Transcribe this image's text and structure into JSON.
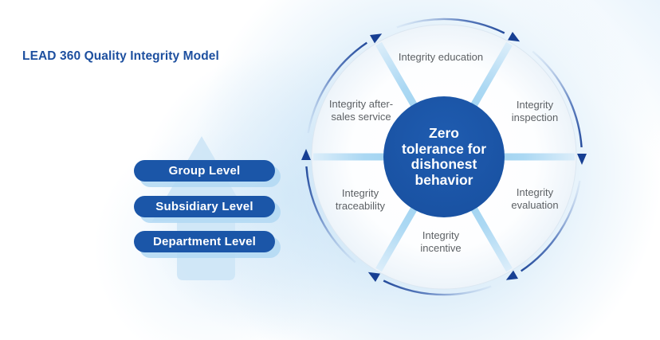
{
  "title": {
    "text": "LEAD 360 Quality Integrity Model"
  },
  "levels": {
    "items": [
      {
        "label": "Group Level"
      },
      {
        "label": "Subsidiary Level"
      },
      {
        "label": "Department Level"
      }
    ]
  },
  "wheel": {
    "center": {
      "lines": [
        "Zero",
        "tolerance for",
        "dishonest",
        "behavior"
      ]
    },
    "segments": [
      {
        "id": "education",
        "label": "Integrity education"
      },
      {
        "id": "inspection",
        "label": "Integrity inspection"
      },
      {
        "id": "evaluation",
        "label": "Integrity evaluation"
      },
      {
        "id": "incentive",
        "label": "Integrity incentive"
      },
      {
        "id": "traceability",
        "label": "Integrity traceability"
      },
      {
        "id": "after-sales-service",
        "label": "Integrity after-sales service"
      }
    ]
  },
  "colors": {
    "brand_blue": "#1b56a8",
    "cycle_arrow_navy": "#173f93",
    "spoke_light_blue": "#a9d6f3",
    "segment_label_gray": "#5d6165",
    "title_blue": "#1d4f9f",
    "level_arrow_light_blue": "#cfe6f7"
  }
}
